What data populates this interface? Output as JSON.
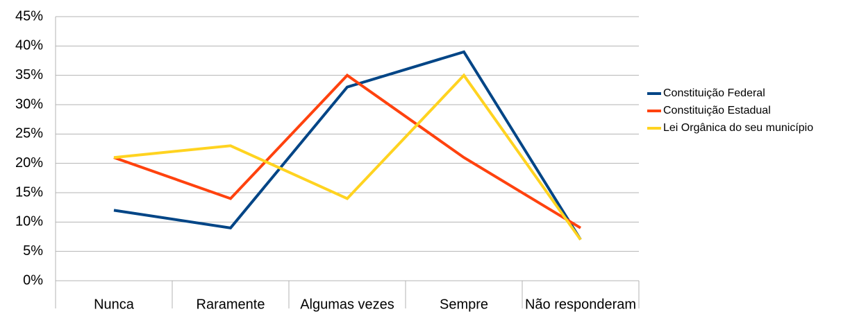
{
  "chart_data": {
    "type": "line",
    "categories": [
      "Nunca",
      "Raramente",
      "Algumas vezes",
      "Sempre",
      "Não responderam"
    ],
    "series": [
      {
        "name": "Constituição Federal",
        "color": "#004586",
        "values": [
          12,
          9,
          33,
          39,
          7
        ]
      },
      {
        "name": "Constituição Estadual",
        "color": "#ff420e",
        "values": [
          21,
          14,
          35,
          21,
          9
        ]
      },
      {
        "name": "Lei Orgânica do seu município",
        "color": "#ffd320",
        "values": [
          21,
          23,
          14,
          35,
          7
        ]
      }
    ],
    "ylim": [
      0,
      45
    ],
    "yticks": [
      {
        "value": 0,
        "label": "0%"
      },
      {
        "value": 5,
        "label": "5%"
      },
      {
        "value": 10,
        "label": "10%"
      },
      {
        "value": 15,
        "label": "15%"
      },
      {
        "value": 20,
        "label": "20%"
      },
      {
        "value": 25,
        "label": "25%"
      },
      {
        "value": 30,
        "label": "30%"
      },
      {
        "value": 35,
        "label": "35%"
      },
      {
        "value": 40,
        "label": "40%"
      },
      {
        "value": 45,
        "label": "45%"
      }
    ],
    "grid": true,
    "legend": "right"
  }
}
